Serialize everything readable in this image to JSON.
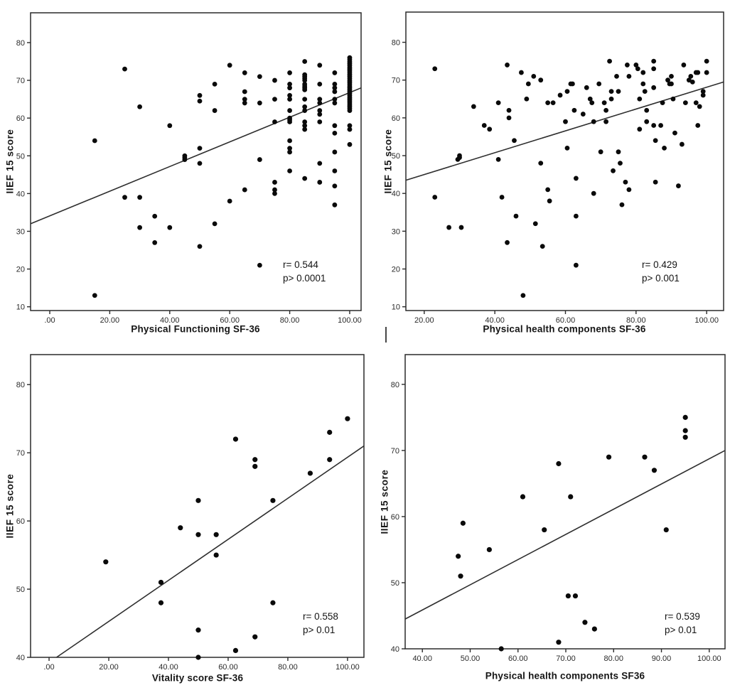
{
  "figure": {
    "background": "#ffffff",
    "ink_color": "#2a2a2a",
    "point_color": "#0a0a0a",
    "cursor_artifact_glyph": "|"
  },
  "chart_data": [
    {
      "id": "top_left",
      "type": "scatter",
      "title": "",
      "xlabel": "Physical Functioning SF-36",
      "ylabel": "IIEF 15 score",
      "annotation": {
        "line1": "r= 0.544",
        "line2": "p> 0.0001"
      },
      "xlim": [
        -6.4,
        103.8
      ],
      "ylim": [
        9,
        87.9
      ],
      "xticks": [
        {
          "v": 0,
          "label": ".00"
        },
        {
          "v": 20,
          "label": "20.00"
        },
        {
          "v": 40,
          "label": "40.00"
        },
        {
          "v": 60,
          "label": "60.00"
        },
        {
          "v": 80,
          "label": "80.00"
        },
        {
          "v": 100,
          "label": "100.00"
        }
      ],
      "yticks": [
        {
          "v": 10,
          "label": "10"
        },
        {
          "v": 20,
          "label": "20"
        },
        {
          "v": 30,
          "label": "30"
        },
        {
          "v": 40,
          "label": "40"
        },
        {
          "v": 50,
          "label": "50"
        },
        {
          "v": 60,
          "label": "60"
        },
        {
          "v": 70,
          "label": "70"
        },
        {
          "v": 80,
          "label": "80"
        }
      ],
      "grid": false,
      "legend": null,
      "marker": {
        "shape": "circle",
        "radius": 3.4
      },
      "regression_line": {
        "x1": -6.4,
        "y1": 32,
        "x2": 103.8,
        "y2": 68
      },
      "points": [
        [
          15,
          54
        ],
        [
          15,
          13
        ],
        [
          25,
          73
        ],
        [
          25,
          39
        ],
        [
          30,
          63
        ],
        [
          30,
          39
        ],
        [
          30,
          31
        ],
        [
          35,
          34
        ],
        [
          35,
          27
        ],
        [
          40,
          58
        ],
        [
          40,
          31
        ],
        [
          45,
          50
        ],
        [
          45,
          49.5
        ],
        [
          45,
          49
        ],
        [
          50,
          66
        ],
        [
          50,
          64.5
        ],
        [
          50,
          52
        ],
        [
          50,
          48
        ],
        [
          50,
          26
        ],
        [
          55,
          69
        ],
        [
          55,
          62
        ],
        [
          55,
          32
        ],
        [
          60,
          74
        ],
        [
          60,
          38
        ],
        [
          65,
          72
        ],
        [
          65,
          67
        ],
        [
          65,
          65
        ],
        [
          65,
          64
        ],
        [
          65,
          41
        ],
        [
          70,
          71
        ],
        [
          70,
          64
        ],
        [
          70,
          49
        ],
        [
          70,
          21
        ],
        [
          75,
          70
        ],
        [
          75,
          65
        ],
        [
          75,
          59
        ],
        [
          75,
          43
        ],
        [
          75,
          41
        ],
        [
          75,
          40
        ],
        [
          80,
          72
        ],
        [
          80,
          69
        ],
        [
          80,
          68
        ],
        [
          80,
          66
        ],
        [
          80,
          65
        ],
        [
          80,
          62
        ],
        [
          80,
          60
        ],
        [
          80,
          59.5
        ],
        [
          80,
          59
        ],
        [
          80,
          54
        ],
        [
          80,
          52
        ],
        [
          80,
          51
        ],
        [
          80,
          46
        ],
        [
          85,
          75
        ],
        [
          85,
          71.5
        ],
        [
          85,
          71
        ],
        [
          85,
          70.5
        ],
        [
          85,
          70
        ],
        [
          85,
          69
        ],
        [
          85,
          68.5
        ],
        [
          85,
          68
        ],
        [
          85,
          67.5
        ],
        [
          85,
          65
        ],
        [
          85,
          63
        ],
        [
          85,
          62
        ],
        [
          85,
          59
        ],
        [
          85,
          58
        ],
        [
          85,
          57
        ],
        [
          85,
          44
        ],
        [
          90,
          74
        ],
        [
          90,
          69
        ],
        [
          90,
          65
        ],
        [
          90,
          64
        ],
        [
          90,
          62
        ],
        [
          90,
          61
        ],
        [
          90,
          59
        ],
        [
          90,
          48
        ],
        [
          90,
          43
        ],
        [
          95,
          72
        ],
        [
          95,
          69
        ],
        [
          95,
          68
        ],
        [
          95,
          67
        ],
        [
          95,
          65
        ],
        [
          95,
          64
        ],
        [
          95,
          58
        ],
        [
          95,
          56
        ],
        [
          95,
          51
        ],
        [
          95,
          46
        ],
        [
          95,
          42
        ],
        [
          95,
          37
        ],
        [
          100,
          76
        ],
        [
          100,
          75.5
        ],
        [
          100,
          75
        ],
        [
          100,
          74.5
        ],
        [
          100,
          74
        ],
        [
          100,
          73.5
        ],
        [
          100,
          73
        ],
        [
          100,
          72.5
        ],
        [
          100,
          72
        ],
        [
          100,
          71.5
        ],
        [
          100,
          71
        ],
        [
          100,
          70.5
        ],
        [
          100,
          70
        ],
        [
          100,
          69.5
        ],
        [
          100,
          69
        ],
        [
          100,
          68.5
        ],
        [
          100,
          68
        ],
        [
          100,
          67.5
        ],
        [
          100,
          67
        ],
        [
          100,
          66.5
        ],
        [
          100,
          66
        ],
        [
          100,
          65.5
        ],
        [
          100,
          65
        ],
        [
          100,
          64.5
        ],
        [
          100,
          64
        ],
        [
          100,
          63.5
        ],
        [
          100,
          63
        ],
        [
          100,
          62.5
        ],
        [
          100,
          62
        ],
        [
          100,
          58
        ],
        [
          100,
          57
        ],
        [
          100,
          53
        ]
      ]
    },
    {
      "id": "top_right",
      "type": "scatter",
      "title": "",
      "xlabel": "Physical health components SF-36",
      "ylabel": "IIEF 15 score",
      "annotation": {
        "line1": "r= 0.429",
        "line2": "p> 0.001"
      },
      "xlim": [
        14.8,
        104.8
      ],
      "ylim": [
        9,
        88
      ],
      "xticks": [
        {
          "v": 20,
          "label": "20.00"
        },
        {
          "v": 40,
          "label": "40.00"
        },
        {
          "v": 60,
          "label": "60.00"
        },
        {
          "v": 80,
          "label": "80.00"
        },
        {
          "v": 100,
          "label": "100.00"
        }
      ],
      "yticks": [
        {
          "v": 10,
          "label": "10"
        },
        {
          "v": 20,
          "label": "20"
        },
        {
          "v": 30,
          "label": "30"
        },
        {
          "v": 40,
          "label": "40"
        },
        {
          "v": 50,
          "label": "50"
        },
        {
          "v": 60,
          "label": "60"
        },
        {
          "v": 70,
          "label": "70"
        },
        {
          "v": 80,
          "label": "80"
        }
      ],
      "grid": false,
      "legend": null,
      "marker": {
        "shape": "circle",
        "radius": 3.4
      },
      "regression_line": {
        "x1": 14.8,
        "y1": 43.5,
        "x2": 104.8,
        "y2": 69.5
      },
      "points": [
        [
          23,
          73
        ],
        [
          23,
          39
        ],
        [
          27,
          31
        ],
        [
          30.5,
          31
        ],
        [
          29.5,
          49
        ],
        [
          30,
          49.5
        ],
        [
          30,
          50
        ],
        [
          34,
          63
        ],
        [
          37,
          58
        ],
        [
          38.5,
          57
        ],
        [
          41,
          64
        ],
        [
          41,
          49
        ],
        [
          42,
          39
        ],
        [
          43.5,
          74
        ],
        [
          44,
          62
        ],
        [
          44,
          60
        ],
        [
          43.5,
          27
        ],
        [
          45.5,
          54
        ],
        [
          46,
          34
        ],
        [
          47.5,
          72
        ],
        [
          48,
          13
        ],
        [
          49,
          65
        ],
        [
          49.5,
          69
        ],
        [
          51,
          71
        ],
        [
          51.5,
          32
        ],
        [
          53,
          70
        ],
        [
          53,
          48
        ],
        [
          53.5,
          26
        ],
        [
          55,
          64
        ],
        [
          55,
          41
        ],
        [
          55.5,
          38
        ],
        [
          56.5,
          64
        ],
        [
          58.5,
          66
        ],
        [
          60.5,
          67
        ],
        [
          60,
          59
        ],
        [
          60.5,
          52
        ],
        [
          61.5,
          69
        ],
        [
          62,
          69
        ],
        [
          62.5,
          62
        ],
        [
          63,
          44
        ],
        [
          63,
          34
        ],
        [
          63,
          21
        ],
        [
          65,
          61
        ],
        [
          66,
          68
        ],
        [
          67,
          65
        ],
        [
          67.5,
          64
        ],
        [
          68,
          59
        ],
        [
          68,
          40
        ],
        [
          69.5,
          69
        ],
        [
          70,
          51
        ],
        [
          71,
          64
        ],
        [
          71.5,
          62
        ],
        [
          71.5,
          59
        ],
        [
          72.5,
          75
        ],
        [
          73,
          67
        ],
        [
          73,
          65
        ],
        [
          73.5,
          46
        ],
        [
          74.5,
          71
        ],
        [
          75,
          67
        ],
        [
          75,
          51
        ],
        [
          75.5,
          48
        ],
        [
          76,
          37
        ],
        [
          77,
          43
        ],
        [
          77.5,
          74
        ],
        [
          78,
          71
        ],
        [
          78,
          41
        ],
        [
          80,
          74
        ],
        [
          80.5,
          73
        ],
        [
          81,
          65
        ],
        [
          81,
          57
        ],
        [
          82,
          72
        ],
        [
          82,
          69
        ],
        [
          82.5,
          67
        ],
        [
          83,
          62
        ],
        [
          83,
          59
        ],
        [
          85,
          75
        ],
        [
          85,
          73
        ],
        [
          85,
          68
        ],
        [
          85,
          58
        ],
        [
          85.5,
          54
        ],
        [
          85.5,
          43
        ],
        [
          87,
          58
        ],
        [
          87.5,
          64
        ],
        [
          88,
          52
        ],
        [
          89,
          70
        ],
        [
          89.5,
          69
        ],
        [
          90,
          71
        ],
        [
          90,
          69
        ],
        [
          90.5,
          65
        ],
        [
          91,
          56
        ],
        [
          92,
          42
        ],
        [
          93,
          53
        ],
        [
          93.5,
          74
        ],
        [
          94,
          64
        ],
        [
          95,
          70
        ],
        [
          95.5,
          71
        ],
        [
          96,
          69.5
        ],
        [
          97,
          72
        ],
        [
          97.5,
          72
        ],
        [
          97,
          64
        ],
        [
          98,
          63
        ],
        [
          97.5,
          58
        ],
        [
          99,
          67
        ],
        [
          99,
          66
        ],
        [
          100,
          75
        ],
        [
          100,
          72
        ]
      ]
    },
    {
      "id": "bottom_left",
      "type": "scatter",
      "title": "",
      "xlabel": "Vitality score SF-36",
      "ylabel": "IIEF 15 score",
      "annotation": {
        "line1": "r= 0.558",
        "line2": "p> 0.01"
      },
      "xlim": [
        -6.2,
        105.5
      ],
      "ylim": [
        40,
        84.4
      ],
      "xticks": [
        {
          "v": 0,
          "label": ".00"
        },
        {
          "v": 20,
          "label": "20.00"
        },
        {
          "v": 40,
          "label": "40.00"
        },
        {
          "v": 60,
          "label": "60.00"
        },
        {
          "v": 80,
          "label": "80.00"
        },
        {
          "v": 100,
          "label": "100.00"
        }
      ],
      "yticks": [
        {
          "v": 40,
          "label": "40"
        },
        {
          "v": 50,
          "label": "50"
        },
        {
          "v": 60,
          "label": "60"
        },
        {
          "v": 70,
          "label": "70"
        },
        {
          "v": 80,
          "label": "80"
        }
      ],
      "grid": false,
      "legend": null,
      "marker": {
        "shape": "circle",
        "radius": 3.6
      },
      "regression_line": {
        "x1": 2.5,
        "y1": 40,
        "x2": 105.5,
        "y2": 71
      },
      "points": [
        [
          19,
          54
        ],
        [
          37.5,
          51
        ],
        [
          37.5,
          48
        ],
        [
          44,
          59
        ],
        [
          50,
          63
        ],
        [
          50,
          58
        ],
        [
          50,
          44
        ],
        [
          50,
          40
        ],
        [
          56,
          58
        ],
        [
          56,
          55
        ],
        [
          62.5,
          72
        ],
        [
          62.5,
          41
        ],
        [
          69,
          69
        ],
        [
          69,
          68
        ],
        [
          69,
          43
        ],
        [
          75,
          63
        ],
        [
          75,
          48
        ],
        [
          87.5,
          67
        ],
        [
          94,
          73
        ],
        [
          94,
          69
        ],
        [
          100,
          75
        ]
      ]
    },
    {
      "id": "bottom_right",
      "type": "scatter",
      "title": "",
      "xlabel": "Physical health components SF36",
      "ylabel": "IIEF 15 score",
      "annotation": {
        "line1": "r= 0.539",
        "line2": "p> 0.01"
      },
      "xlim": [
        36.4,
        103.3
      ],
      "ylim": [
        40,
        84.5
      ],
      "xticks": [
        {
          "v": 40,
          "label": "40.00"
        },
        {
          "v": 50,
          "label": "50.00"
        },
        {
          "v": 60,
          "label": "60.00"
        },
        {
          "v": 70,
          "label": "70.00"
        },
        {
          "v": 80,
          "label": "80.00"
        },
        {
          "v": 90,
          "label": "90.00"
        },
        {
          "v": 100,
          "label": "100.00"
        }
      ],
      "yticks": [
        {
          "v": 40,
          "label": "40"
        },
        {
          "v": 50,
          "label": "50"
        },
        {
          "v": 60,
          "label": "60"
        },
        {
          "v": 70,
          "label": "70"
        },
        {
          "v": 80,
          "label": "80"
        }
      ],
      "grid": false,
      "legend": null,
      "marker": {
        "shape": "circle",
        "radius": 3.6
      },
      "regression_line": {
        "x1": 36.4,
        "y1": 44.5,
        "x2": 103.3,
        "y2": 70
      },
      "points": [
        [
          47.5,
          54
        ],
        [
          48,
          51
        ],
        [
          48.5,
          59
        ],
        [
          54,
          55
        ],
        [
          56.5,
          40
        ],
        [
          61,
          63
        ],
        [
          65.5,
          58
        ],
        [
          68.5,
          68
        ],
        [
          68.5,
          41
        ],
        [
          70.5,
          48
        ],
        [
          71,
          63
        ],
        [
          72,
          48
        ],
        [
          74,
          44
        ],
        [
          76,
          43
        ],
        [
          79,
          69
        ],
        [
          86.5,
          69
        ],
        [
          88.5,
          67
        ],
        [
          91,
          58
        ],
        [
          95,
          75
        ],
        [
          95,
          73
        ],
        [
          95,
          72
        ]
      ]
    }
  ]
}
